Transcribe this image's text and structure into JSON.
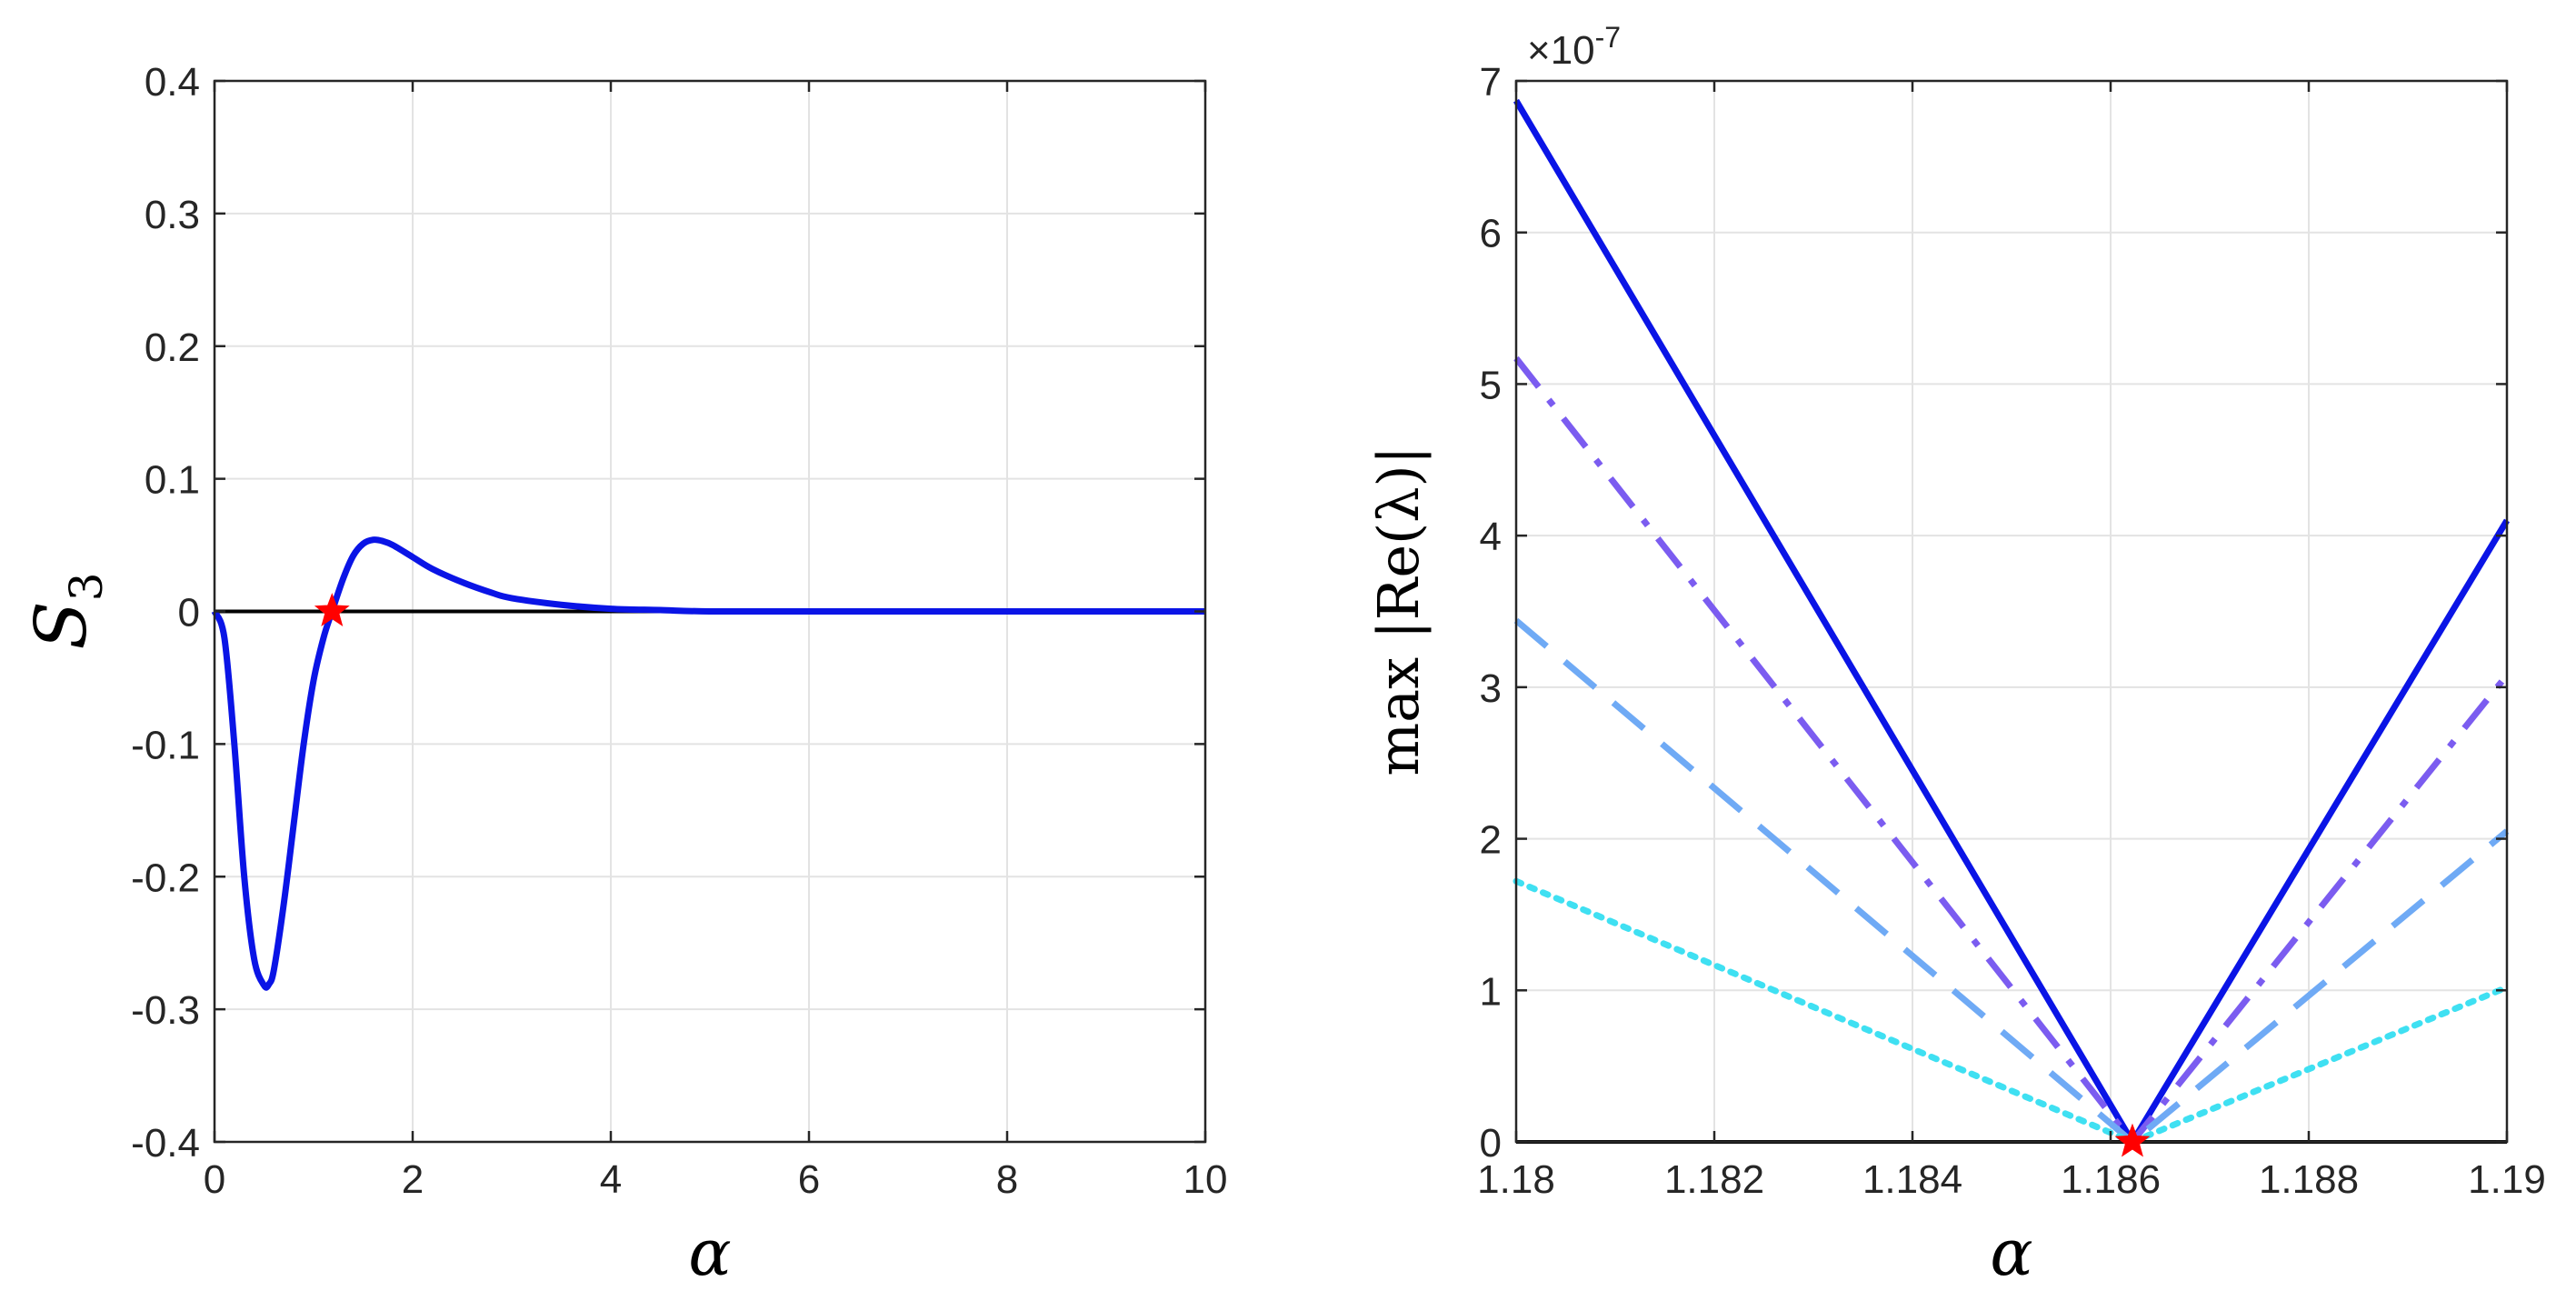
{
  "chart_data": [
    {
      "type": "line",
      "xlabel": "α",
      "ylabel": "S",
      "ylabel_subscript": "3",
      "xlim": [
        0,
        10
      ],
      "ylim": [
        -0.4,
        0.4
      ],
      "xticks": [
        0,
        2,
        4,
        6,
        8,
        10
      ],
      "xtick_labels": [
        "0",
        "2",
        "4",
        "6",
        "8",
        "10"
      ],
      "yticks": [
        -0.4,
        -0.3,
        -0.2,
        -0.1,
        0,
        0.1,
        0.2,
        0.3,
        0.4
      ],
      "ytick_labels": [
        "-0.4",
        "-0.3",
        "-0.2",
        "-0.1",
        "0",
        "0.1",
        "0.2",
        "0.3",
        "0.4"
      ],
      "grid": true,
      "series": [
        {
          "name": "S3",
          "color": "#0a14e6",
          "style": "solid",
          "x": [
            0,
            0.1,
            0.2,
            0.3,
            0.4,
            0.5,
            0.55,
            0.6,
            0.7,
            0.8,
            0.9,
            1.0,
            1.1,
            1.186,
            1.3,
            1.4,
            1.5,
            1.6,
            1.7,
            1.8,
            2.0,
            2.2,
            2.5,
            2.8,
            3.0,
            3.5,
            4.0,
            4.5,
            5.0,
            6.0,
            7.0,
            8.0,
            9.0,
            10.0
          ],
          "y": [
            0,
            -0.02,
            -0.1,
            -0.2,
            -0.262,
            -0.282,
            -0.281,
            -0.27,
            -0.22,
            -0.16,
            -0.1,
            -0.052,
            -0.02,
            0,
            0.025,
            0.042,
            0.051,
            0.054,
            0.053,
            0.05,
            0.041,
            0.032,
            0.022,
            0.014,
            0.01,
            0.005,
            0.002,
            0.001,
            0,
            0,
            0,
            0,
            0,
            0
          ]
        },
        {
          "name": "zero line",
          "color": "#000000",
          "style": "solid",
          "x": [
            0,
            10
          ],
          "y": [
            0,
            0
          ]
        }
      ],
      "markers": [
        {
          "name": "root",
          "x": 1.186,
          "y": 0,
          "color": "#ff0000",
          "shape": "star"
        }
      ]
    },
    {
      "type": "line",
      "xlabel": "α",
      "ylabel": "max |Re(λ)|",
      "y_exponent_label": "×10",
      "y_exponent_power": "-7",
      "xlim": [
        1.18,
        1.19
      ],
      "ylim": [
        0,
        7
      ],
      "xticks": [
        1.18,
        1.182,
        1.184,
        1.186,
        1.188,
        1.19
      ],
      "xtick_labels": [
        "1.18",
        "1.182",
        "1.184",
        "1.186",
        "1.188",
        "1.19"
      ],
      "yticks": [
        0,
        1,
        2,
        3,
        4,
        5,
        6,
        7
      ],
      "ytick_labels": [
        "0",
        "1",
        "2",
        "3",
        "4",
        "5",
        "6",
        "7"
      ],
      "grid": true,
      "series": [
        {
          "name": "solid",
          "color": "#0a14e6",
          "style": "solid",
          "x": [
            1.18,
            1.18622,
            1.19
          ],
          "y": [
            6.87,
            0,
            4.1
          ]
        },
        {
          "name": "dash-dot",
          "color": "#7b5cf0",
          "style": "dashdot",
          "x": [
            1.18,
            1.18622,
            1.19
          ],
          "y": [
            5.17,
            0,
            3.08
          ]
        },
        {
          "name": "dashed",
          "color": "#6faaf5",
          "style": "dashed",
          "x": [
            1.18,
            1.18622,
            1.19
          ],
          "y": [
            3.44,
            0,
            2.05
          ]
        },
        {
          "name": "dotted",
          "color": "#3fe0f2",
          "style": "dotted",
          "x": [
            1.18,
            1.18622,
            1.19
          ],
          "y": [
            1.72,
            0,
            1.02
          ]
        },
        {
          "name": "zero line",
          "color": "#000000",
          "style": "solid",
          "x": [
            1.18,
            1.19
          ],
          "y": [
            0,
            0
          ]
        }
      ],
      "markers": [
        {
          "name": "root",
          "x": 1.18622,
          "y": 0,
          "color": "#ff0000",
          "shape": "star"
        }
      ]
    }
  ]
}
